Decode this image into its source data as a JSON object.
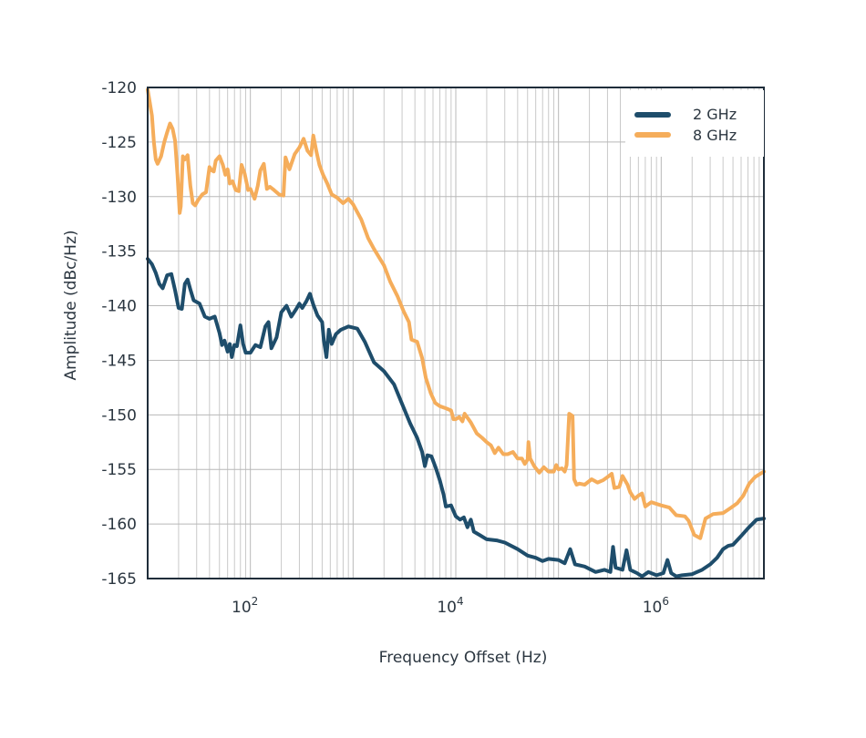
{
  "chart_data": {
    "type": "line",
    "title": "",
    "xlabel": "Frequency Offset (Hz)",
    "ylabel": "Amplitude (dBc/Hz)",
    "xscale": "log",
    "xlim": [
      10,
      10000000
    ],
    "ylim": [
      -165,
      -120
    ],
    "grid": true,
    "legend_position": "top-right",
    "x_ticks": [
      {
        "value": 100,
        "base": "10",
        "exp": "2"
      },
      {
        "value": 10000,
        "base": "10",
        "exp": "4"
      },
      {
        "value": 1000000,
        "base": "10",
        "exp": "6"
      }
    ],
    "y_ticks": [
      {
        "value": -120,
        "label": "-120"
      },
      {
        "value": -125,
        "label": "-125"
      },
      {
        "value": -130,
        "label": "-130"
      },
      {
        "value": -135,
        "label": "-135"
      },
      {
        "value": -140,
        "label": "-140"
      },
      {
        "value": -145,
        "label": "-145"
      },
      {
        "value": -150,
        "label": "-150"
      },
      {
        "value": -155,
        "label": "-155"
      },
      {
        "value": -160,
        "label": "-160"
      },
      {
        "value": -165,
        "label": "-165"
      }
    ],
    "series": [
      {
        "name": "2 GHz",
        "color": "#1e4d6b",
        "points": [
          [
            10,
            -135.7
          ],
          [
            11,
            -136.2
          ],
          [
            12,
            -137
          ],
          [
            13,
            -138
          ],
          [
            14,
            -138.4
          ],
          [
            15.5,
            -137.2
          ],
          [
            17,
            -137.1
          ],
          [
            18.5,
            -138.6
          ],
          [
            20,
            -140.2
          ],
          [
            21.5,
            -140.3
          ],
          [
            23,
            -138
          ],
          [
            24.5,
            -137.6
          ],
          [
            26,
            -138.5
          ],
          [
            28,
            -139.5
          ],
          [
            32,
            -139.8
          ],
          [
            36,
            -141
          ],
          [
            40,
            -141.2
          ],
          [
            45,
            -141
          ],
          [
            50,
            -142.5
          ],
          [
            53,
            -143.6
          ],
          [
            56,
            -143.2
          ],
          [
            60,
            -144.2
          ],
          [
            63,
            -143.5
          ],
          [
            66,
            -144.7
          ],
          [
            70,
            -143.6
          ],
          [
            74,
            -143.7
          ],
          [
            80,
            -141.8
          ],
          [
            85,
            -143.5
          ],
          [
            90,
            -144.3
          ],
          [
            100,
            -144.3
          ],
          [
            112,
            -143.6
          ],
          [
            125,
            -143.8
          ],
          [
            140,
            -141.9
          ],
          [
            150,
            -141.5
          ],
          [
            160,
            -143.9
          ],
          [
            180,
            -142.9
          ],
          [
            200,
            -140.6
          ],
          [
            225,
            -140
          ],
          [
            250,
            -141
          ],
          [
            280,
            -140.3
          ],
          [
            300,
            -139.8
          ],
          [
            320,
            -140.2
          ],
          [
            350,
            -139.6
          ],
          [
            380,
            -138.9
          ],
          [
            410,
            -139.9
          ],
          [
            450,
            -140.9
          ],
          [
            500,
            -141.5
          ],
          [
            520,
            -143.2
          ],
          [
            550,
            -144.7
          ],
          [
            580,
            -142.2
          ],
          [
            620,
            -143.5
          ],
          [
            680,
            -142.6
          ],
          [
            760,
            -142.2
          ],
          [
            900,
            -141.9
          ],
          [
            1100,
            -142.1
          ],
          [
            1300,
            -143.3
          ],
          [
            1600,
            -145.2
          ],
          [
            2000,
            -146
          ],
          [
            2500,
            -147.2
          ],
          [
            3000,
            -149
          ],
          [
            3600,
            -150.8
          ],
          [
            4200,
            -152.1
          ],
          [
            4700,
            -153.4
          ],
          [
            5000,
            -154.7
          ],
          [
            5300,
            -153.7
          ],
          [
            5800,
            -153.8
          ],
          [
            6400,
            -154.9
          ],
          [
            7000,
            -156
          ],
          [
            7600,
            -157.3
          ],
          [
            8000,
            -158.4
          ],
          [
            9000,
            -158.3
          ],
          [
            10000,
            -159.3
          ],
          [
            11000,
            -159.6
          ],
          [
            12000,
            -159.4
          ],
          [
            13000,
            -160.3
          ],
          [
            14000,
            -159.6
          ],
          [
            15000,
            -160.7
          ],
          [
            17000,
            -161
          ],
          [
            20000,
            -161.4
          ],
          [
            25000,
            -161.5
          ],
          [
            30000,
            -161.7
          ],
          [
            40000,
            -162.3
          ],
          [
            50000,
            -162.9
          ],
          [
            60000,
            -163.1
          ],
          [
            70000,
            -163.4
          ],
          [
            80000,
            -163.2
          ],
          [
            100000,
            -163.3
          ],
          [
            115000,
            -163.6
          ],
          [
            130000,
            -162.3
          ],
          [
            145000,
            -163.7
          ],
          [
            180000,
            -163.9
          ],
          [
            230000,
            -164.4
          ],
          [
            280000,
            -164.2
          ],
          [
            320000,
            -164.4
          ],
          [
            340000,
            -162.1
          ],
          [
            360000,
            -164
          ],
          [
            420000,
            -164.2
          ],
          [
            460000,
            -162.4
          ],
          [
            500000,
            -164.2
          ],
          [
            580000,
            -164.5
          ],
          [
            650000,
            -164.8
          ],
          [
            750000,
            -164.4
          ],
          [
            900000,
            -164.7
          ],
          [
            1050000,
            -164.5
          ],
          [
            1150000,
            -163.3
          ],
          [
            1250000,
            -164.5
          ],
          [
            1400000,
            -164.8
          ],
          [
            1600000,
            -164.7
          ],
          [
            2000000,
            -164.6
          ],
          [
            2500000,
            -164.2
          ],
          [
            3000000,
            -163.7
          ],
          [
            3500000,
            -163.1
          ],
          [
            4000000,
            -162.3
          ],
          [
            4500000,
            -162
          ],
          [
            5000000,
            -161.9
          ],
          [
            6000000,
            -161.1
          ],
          [
            7000000,
            -160.4
          ],
          [
            8500000,
            -159.6
          ],
          [
            10000000,
            -159.5
          ]
        ]
      },
      {
        "name": "8 GHz",
        "color": "#f5ad5b",
        "points": [
          [
            10,
            -120.2
          ],
          [
            10.5,
            -121.4
          ],
          [
            11,
            -122.6
          ],
          [
            11.5,
            -125
          ],
          [
            12,
            -126.6
          ],
          [
            12.5,
            -127
          ],
          [
            13.5,
            -126.3
          ],
          [
            14.5,
            -125
          ],
          [
            15.5,
            -124.1
          ],
          [
            16.5,
            -123.3
          ],
          [
            17.5,
            -123.8
          ],
          [
            18.5,
            -124.9
          ],
          [
            19.5,
            -128
          ],
          [
            20.5,
            -131.5
          ],
          [
            21,
            -130.9
          ],
          [
            22,
            -126.3
          ],
          [
            23,
            -126.6
          ],
          [
            24.5,
            -126.2
          ],
          [
            26,
            -129
          ],
          [
            27.5,
            -130.6
          ],
          [
            29,
            -130.8
          ],
          [
            31,
            -130.3
          ],
          [
            34,
            -129.8
          ],
          [
            37,
            -129.6
          ],
          [
            40,
            -127.3
          ],
          [
            42,
            -127.6
          ],
          [
            44,
            -127.7
          ],
          [
            46,
            -126.7
          ],
          [
            50,
            -126.3
          ],
          [
            54,
            -127.1
          ],
          [
            57,
            -128
          ],
          [
            60,
            -127.5
          ],
          [
            63,
            -128.8
          ],
          [
            67,
            -128.6
          ],
          [
            72,
            -129.4
          ],
          [
            77,
            -129.5
          ],
          [
            82,
            -127.1
          ],
          [
            88,
            -127.9
          ],
          [
            95,
            -129.4
          ],
          [
            100,
            -129.3
          ],
          [
            110,
            -130.2
          ],
          [
            118,
            -129
          ],
          [
            125,
            -127.6
          ],
          [
            135,
            -127
          ],
          [
            145,
            -129.3
          ],
          [
            155,
            -129.1
          ],
          [
            170,
            -129.4
          ],
          [
            190,
            -129.8
          ],
          [
            210,
            -129.9
          ],
          [
            220,
            -126.4
          ],
          [
            240,
            -127.5
          ],
          [
            270,
            -126.1
          ],
          [
            300,
            -125.5
          ],
          [
            330,
            -124.7
          ],
          [
            360,
            -125.8
          ],
          [
            390,
            -126.2
          ],
          [
            410,
            -124.4
          ],
          [
            440,
            -125.9
          ],
          [
            470,
            -127.1
          ],
          [
            510,
            -128
          ],
          [
            560,
            -128.8
          ],
          [
            620,
            -129.8
          ],
          [
            700,
            -130.1
          ],
          [
            800,
            -130.6
          ],
          [
            900,
            -130.2
          ],
          [
            1000,
            -130.7
          ],
          [
            1200,
            -132.1
          ],
          [
            1400,
            -133.8
          ],
          [
            1600,
            -134.8
          ],
          [
            1800,
            -135.6
          ],
          [
            2000,
            -136.3
          ],
          [
            2300,
            -137.8
          ],
          [
            2700,
            -139.1
          ],
          [
            3100,
            -140.5
          ],
          [
            3500,
            -141.5
          ],
          [
            3700,
            -143.1
          ],
          [
            4200,
            -143.3
          ],
          [
            4700,
            -144.8
          ],
          [
            5100,
            -146.6
          ],
          [
            5700,
            -148
          ],
          [
            6300,
            -148.9
          ],
          [
            7000,
            -149.2
          ],
          [
            8000,
            -149.4
          ],
          [
            9000,
            -149.6
          ],
          [
            9500,
            -150.4
          ],
          [
            10000,
            -150.4
          ],
          [
            10800,
            -150.2
          ],
          [
            11600,
            -150.6
          ],
          [
            12200,
            -149.9
          ],
          [
            14000,
            -150.7
          ],
          [
            16000,
            -151.7
          ],
          [
            18000,
            -152.1
          ],
          [
            20000,
            -152.5
          ],
          [
            22000,
            -152.8
          ],
          [
            24000,
            -153.5
          ],
          [
            26000,
            -153
          ],
          [
            29000,
            -153.6
          ],
          [
            32000,
            -153.6
          ],
          [
            36000,
            -153.4
          ],
          [
            40000,
            -154
          ],
          [
            44000,
            -154
          ],
          [
            47000,
            -154.5
          ],
          [
            50000,
            -154.1
          ],
          [
            51000,
            -152.5
          ],
          [
            53000,
            -154
          ],
          [
            58000,
            -154.7
          ],
          [
            65000,
            -155.3
          ],
          [
            72000,
            -154.8
          ],
          [
            80000,
            -155.2
          ],
          [
            90000,
            -155.2
          ],
          [
            95000,
            -154.6
          ],
          [
            100000,
            -155
          ],
          [
            108000,
            -154.9
          ],
          [
            115000,
            -155.2
          ],
          [
            120000,
            -154.6
          ],
          [
            127000,
            -149.9
          ],
          [
            137000,
            -150.1
          ],
          [
            142000,
            -155.9
          ],
          [
            150000,
            -156.4
          ],
          [
            160000,
            -156.3
          ],
          [
            180000,
            -156.4
          ],
          [
            210000,
            -155.9
          ],
          [
            240000,
            -156.2
          ],
          [
            270000,
            -156
          ],
          [
            300000,
            -155.7
          ],
          [
            330000,
            -155.4
          ],
          [
            350000,
            -156.7
          ],
          [
            390000,
            -156.6
          ],
          [
            420000,
            -155.6
          ],
          [
            470000,
            -156.4
          ],
          [
            500000,
            -157.1
          ],
          [
            550000,
            -157.7
          ],
          [
            600000,
            -157.4
          ],
          [
            650000,
            -157.2
          ],
          [
            700000,
            -158.4
          ],
          [
            800000,
            -158
          ],
          [
            1000000,
            -158.3
          ],
          [
            1200000,
            -158.5
          ],
          [
            1400000,
            -159.2
          ],
          [
            1700000,
            -159.3
          ],
          [
            1850000,
            -159.7
          ],
          [
            2100000,
            -161
          ],
          [
            2400000,
            -161.3
          ],
          [
            2700000,
            -159.5
          ],
          [
            3200000,
            -159.1
          ],
          [
            4000000,
            -159
          ],
          [
            4800000,
            -158.5
          ],
          [
            5500000,
            -158.1
          ],
          [
            6300000,
            -157.4
          ],
          [
            7200000,
            -156.3
          ],
          [
            8200000,
            -155.7
          ],
          [
            10000000,
            -155.2
          ]
        ]
      }
    ]
  }
}
